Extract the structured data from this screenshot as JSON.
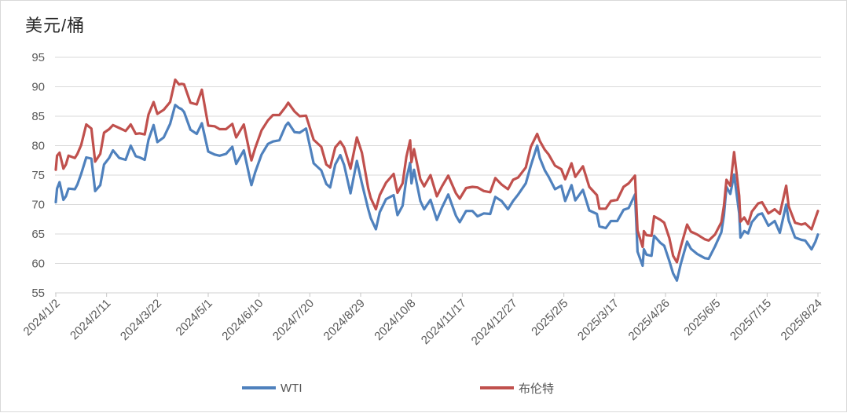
{
  "title": "美元/桶",
  "colors": {
    "wti": "#4F81BD",
    "brent": "#C0504D",
    "gridline": "#D9D9D9",
    "axis_text": "#595959",
    "title_text": "#262626"
  },
  "legend": {
    "entries": [
      {
        "label": "WTI",
        "color": "#4F81BD"
      },
      {
        "label": "布伦特",
        "color": "#C0504D"
      }
    ]
  },
  "chart_data": {
    "type": "line",
    "title": "美元/桶",
    "ylabel": "美元/桶",
    "xlabel": "",
    "ylim": [
      55,
      95
    ],
    "y_ticks": [
      95,
      90,
      85,
      80,
      75,
      70,
      65,
      60,
      55
    ],
    "x_range": [
      "2024/1/2",
      "2025/8/24"
    ],
    "x_ticks": [
      "2024/1/2",
      "2024/2/11",
      "2024/3/22",
      "2024/5/1",
      "2024/6/10",
      "2024/7/20",
      "2024/8/29",
      "2024/10/8",
      "2024/11/17",
      "2024/12/27",
      "2025/2/5",
      "2025/3/17",
      "2025/4/26",
      "2025/6/5",
      "2025/7/15",
      "2025/8/24"
    ],
    "grid": "horizontal",
    "legend_position": "bottom",
    "x": [
      "2024/1/2",
      "2024/1/3",
      "2024/1/5",
      "2024/1/8",
      "2024/1/10",
      "2024/1/12",
      "2024/1/17",
      "2024/1/19",
      "2024/1/22",
      "2024/1/26",
      "2024/1/30",
      "2024/2/2",
      "2024/2/6",
      "2024/2/9",
      "2024/2/13",
      "2024/2/16",
      "2024/2/21",
      "2024/2/26",
      "2024/3/1",
      "2024/3/5",
      "2024/3/8",
      "2024/3/12",
      "2024/3/15",
      "2024/3/19",
      "2024/3/22",
      "2024/3/27",
      "2024/4/1",
      "2024/4/5",
      "2024/4/8",
      "2024/4/10",
      "2024/4/12",
      "2024/4/17",
      "2024/4/22",
      "2024/4/26",
      "2024/5/1",
      "2024/5/6",
      "2024/5/10",
      "2024/5/15",
      "2024/5/20",
      "2024/5/23",
      "2024/5/29",
      "2024/6/3",
      "2024/6/4",
      "2024/6/7",
      "2024/6/12",
      "2024/6/17",
      "2024/6/21",
      "2024/6/26",
      "2024/7/1",
      "2024/7/3",
      "2024/7/8",
      "2024/7/12",
      "2024/7/17",
      "2024/7/23",
      "2024/7/29",
      "2024/8/2",
      "2024/8/5",
      "2024/8/9",
      "2024/8/13",
      "2024/8/16",
      "2024/8/21",
      "2024/8/26",
      "2024/8/30",
      "2024/9/4",
      "2024/9/6",
      "2024/9/10",
      "2024/9/13",
      "2024/9/18",
      "2024/9/24",
      "2024/9/27",
      "2024/10/1",
      "2024/10/4",
      "2024/10/7",
      "2024/10/8",
      "2024/10/10",
      "2024/10/15",
      "2024/10/18",
      "2024/10/23",
      "2024/10/28",
      "2024/11/1",
      "2024/11/6",
      "2024/11/12",
      "2024/11/15",
      "2024/11/20",
      "2024/11/25",
      "2024/11/29",
      "2024/12/4",
      "2024/12/9",
      "2024/12/13",
      "2024/12/18",
      "2024/12/23",
      "2024/12/27",
      "2024/12/31",
      "2025/1/6",
      "2025/1/10",
      "2025/1/15",
      "2025/1/17",
      "2025/1/21",
      "2025/1/24",
      "2025/1/29",
      "2025/2/3",
      "2025/2/6",
      "2025/2/11",
      "2025/2/14",
      "2025/2/20",
      "2025/2/25",
      "2025/3/3",
      "2025/3/5",
      "2025/3/10",
      "2025/3/14",
      "2025/3/19",
      "2025/3/24",
      "2025/3/28",
      "2025/4/2",
      "2025/4/3",
      "2025/4/4",
      "2025/4/8",
      "2025/4/9",
      "2025/4/11",
      "2025/4/15",
      "2025/4/17",
      "2025/4/22",
      "2025/4/25",
      "2025/4/29",
      "2025/5/2",
      "2025/5/5",
      "2025/5/8",
      "2025/5/13",
      "2025/5/16",
      "2025/5/21",
      "2025/5/27",
      "2025/5/30",
      "2025/6/4",
      "2025/6/9",
      "2025/6/11",
      "2025/6/13",
      "2025/6/16",
      "2025/6/19",
      "2025/6/23",
      "2025/6/24",
      "2025/6/27",
      "2025/6/30",
      "2025/7/3",
      "2025/7/8",
      "2025/7/11",
      "2025/7/16",
      "2025/7/21",
      "2025/7/25",
      "2025/7/30",
      "2025/8/1",
      "2025/8/6",
      "2025/8/11",
      "2025/8/14",
      "2025/8/19",
      "2025/8/22",
      "2025/8/24"
    ],
    "series": [
      {
        "name": "WTI",
        "color": "#4F81BD",
        "values": [
          70.4,
          72.7,
          73.8,
          70.8,
          71.4,
          72.7,
          72.6,
          73.4,
          75.2,
          78.0,
          77.8,
          72.3,
          73.3,
          76.8,
          77.9,
          79.2,
          77.9,
          77.6,
          80.0,
          78.2,
          78.0,
          77.6,
          81.0,
          83.5,
          80.6,
          81.4,
          83.7,
          86.9,
          86.4,
          86.2,
          85.7,
          82.7,
          82.0,
          83.8,
          79.0,
          78.5,
          78.3,
          78.6,
          79.8,
          76.9,
          79.2,
          74.2,
          73.3,
          75.5,
          78.5,
          80.3,
          80.7,
          80.9,
          83.4,
          83.9,
          82.3,
          82.2,
          82.9,
          77.0,
          75.8,
          73.5,
          72.9,
          76.8,
          78.4,
          76.7,
          71.9,
          77.4,
          73.6,
          69.2,
          67.7,
          65.8,
          68.7,
          70.9,
          71.6,
          68.2,
          69.8,
          74.4,
          77.1,
          73.6,
          75.9,
          70.6,
          69.2,
          70.8,
          67.4,
          69.5,
          71.7,
          68.1,
          67.0,
          68.9,
          68.9,
          68.0,
          68.5,
          68.4,
          71.3,
          70.6,
          69.2,
          70.6,
          71.7,
          73.6,
          76.6,
          80.0,
          77.9,
          75.8,
          74.7,
          72.6,
          73.2,
          70.6,
          73.3,
          70.7,
          72.5,
          69.0,
          68.4,
          66.3,
          66.0,
          67.2,
          67.2,
          69.1,
          69.4,
          71.7,
          67.0,
          62.0,
          59.6,
          62.4,
          61.5,
          61.3,
          64.7,
          63.5,
          63.0,
          60.4,
          58.3,
          57.1,
          59.9,
          63.7,
          62.5,
          61.6,
          60.9,
          60.8,
          62.9,
          65.3,
          68.2,
          73.0,
          71.8,
          75.1,
          68.5,
          64.4,
          65.5,
          65.1,
          67.0,
          68.3,
          68.5,
          66.4,
          67.2,
          65.2,
          70.0,
          67.3,
          64.4,
          64.0,
          63.9,
          62.4,
          63.7,
          64.9
        ]
      },
      {
        "name": "布伦特",
        "color": "#C0504D",
        "values": [
          75.9,
          78.3,
          78.8,
          76.1,
          76.8,
          78.3,
          77.9,
          78.6,
          80.1,
          83.6,
          82.9,
          77.3,
          78.6,
          82.2,
          82.8,
          83.5,
          83.0,
          82.5,
          83.6,
          82.0,
          82.1,
          81.9,
          85.3,
          87.4,
          85.4,
          86.1,
          87.4,
          91.2,
          90.4,
          90.5,
          90.4,
          87.3,
          87.0,
          89.5,
          83.4,
          83.3,
          82.8,
          82.8,
          83.7,
          81.4,
          83.6,
          78.4,
          77.5,
          79.6,
          82.6,
          84.3,
          85.2,
          85.2,
          86.6,
          87.3,
          85.8,
          85.0,
          85.1,
          81.0,
          79.8,
          76.8,
          76.3,
          79.7,
          80.7,
          79.7,
          76.1,
          81.4,
          78.8,
          72.7,
          71.1,
          69.2,
          71.6,
          73.7,
          75.2,
          72.0,
          73.6,
          78.1,
          80.9,
          77.2,
          79.4,
          74.3,
          73.1,
          75.0,
          71.4,
          73.1,
          74.9,
          71.9,
          71.0,
          72.8,
          73.0,
          72.9,
          72.3,
          72.1,
          74.5,
          73.4,
          72.6,
          74.2,
          74.6,
          76.3,
          79.8,
          82.0,
          80.8,
          79.3,
          78.5,
          76.6,
          76.0,
          74.3,
          77.0,
          74.7,
          76.5,
          73.0,
          71.6,
          69.3,
          69.3,
          70.6,
          70.8,
          73.0,
          73.6,
          74.9,
          70.1,
          65.6,
          62.8,
          65.5,
          64.8,
          64.7,
          68.0,
          67.4,
          66.9,
          64.3,
          61.3,
          60.2,
          62.8,
          66.6,
          65.4,
          64.9,
          64.1,
          63.9,
          64.9,
          67.0,
          69.8,
          74.2,
          73.2,
          78.9,
          71.5,
          67.1,
          67.8,
          66.7,
          68.8,
          70.2,
          70.4,
          68.5,
          69.2,
          68.4,
          73.2,
          69.7,
          66.9,
          66.6,
          66.8,
          65.8,
          67.7,
          68.9
        ]
      }
    ]
  }
}
